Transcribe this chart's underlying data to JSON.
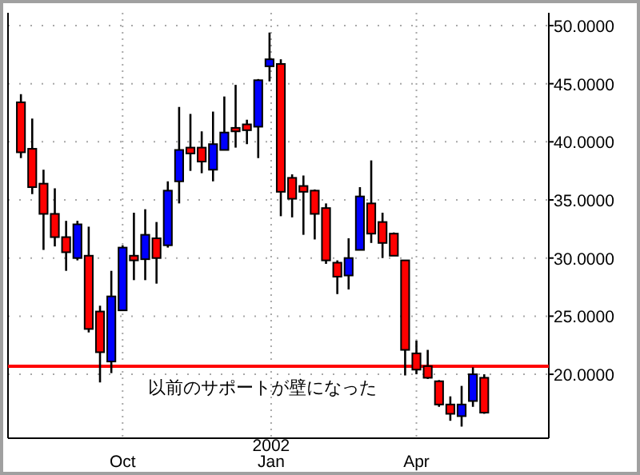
{
  "chart_data": {
    "type": "candlestick",
    "x": [
      "2001-07-30",
      "2001-08-06",
      "2001-08-13",
      "2001-08-20",
      "2001-08-27",
      "2001-09-03",
      "2001-09-10",
      "2001-09-17",
      "2001-09-24",
      "2001-10-01",
      "2001-10-08",
      "2001-10-15",
      "2001-10-22",
      "2001-10-29",
      "2001-11-05",
      "2001-11-12",
      "2001-11-19",
      "2001-11-26",
      "2001-12-03",
      "2001-12-10",
      "2001-12-17",
      "2001-12-24",
      "2001-12-31",
      "2002-01-07",
      "2002-01-14",
      "2002-01-21",
      "2002-01-28",
      "2002-02-04",
      "2002-02-11",
      "2002-02-18",
      "2002-02-25",
      "2002-03-04",
      "2002-03-11",
      "2002-03-18",
      "2002-03-25",
      "2002-04-01",
      "2002-04-08",
      "2002-04-15",
      "2002-04-22",
      "2002-04-29",
      "2002-05-06",
      "2002-05-13"
    ],
    "ohlc": [
      [
        43.4,
        44.1,
        38.6,
        39.1
      ],
      [
        39.4,
        42.0,
        35.5,
        36.1
      ],
      [
        36.4,
        37.6,
        30.7,
        33.8
      ],
      [
        33.8,
        36.0,
        31.0,
        31.8
      ],
      [
        31.8,
        33.2,
        28.9,
        30.5
      ],
      [
        30.0,
        33.2,
        29.8,
        32.9
      ],
      [
        30.2,
        32.7,
        23.6,
        23.9
      ],
      [
        25.4,
        25.9,
        19.3,
        21.9
      ],
      [
        21.1,
        28.9,
        20.1,
        26.7
      ],
      [
        25.5,
        31.1,
        25.5,
        30.9
      ],
      [
        30.2,
        33.9,
        28.1,
        29.8
      ],
      [
        29.9,
        34.2,
        28.1,
        32.0
      ],
      [
        31.7,
        33.1,
        27.8,
        30.0
      ],
      [
        31.1,
        36.6,
        30.9,
        35.8
      ],
      [
        36.6,
        43.0,
        34.7,
        39.3
      ],
      [
        39.5,
        42.4,
        37.5,
        39.0
      ],
      [
        39.5,
        40.9,
        37.3,
        38.3
      ],
      [
        37.6,
        42.6,
        36.6,
        39.8
      ],
      [
        39.3,
        43.9,
        39.3,
        40.8
      ],
      [
        41.2,
        44.9,
        39.5,
        40.9
      ],
      [
        41.5,
        41.9,
        39.8,
        41.0
      ],
      [
        41.3,
        45.4,
        38.6,
        45.3
      ],
      [
        46.5,
        49.4,
        45.2,
        47.1
      ],
      [
        46.7,
        47.1,
        33.6,
        35.7
      ],
      [
        36.9,
        37.2,
        33.5,
        35.1
      ],
      [
        36.2,
        37.1,
        32.0,
        35.7
      ],
      [
        35.8,
        35.9,
        31.6,
        33.8
      ],
      [
        34.3,
        34.7,
        29.5,
        29.8
      ],
      [
        29.6,
        29.8,
        26.9,
        28.4
      ],
      [
        28.5,
        31.7,
        27.3,
        30.0
      ],
      [
        30.7,
        36.1,
        30.7,
        35.3
      ],
      [
        34.7,
        38.4,
        31.3,
        32.1
      ],
      [
        33.1,
        33.9,
        30.0,
        31.3
      ],
      [
        32.1,
        32.2,
        30.2,
        30.2
      ],
      [
        29.8,
        29.8,
        19.9,
        22.1
      ],
      [
        21.8,
        22.9,
        20.0,
        20.4
      ],
      [
        20.7,
        22.1,
        19.6,
        19.7
      ],
      [
        19.4,
        19.5,
        17.2,
        17.4
      ],
      [
        17.4,
        18.1,
        16.0,
        16.6
      ],
      [
        16.4,
        19.0,
        15.5,
        17.4
      ],
      [
        17.7,
        20.6,
        17.2,
        20.0
      ],
      [
        19.7,
        20.0,
        16.6,
        16.7
      ]
    ],
    "colors": [
      "#ff0000",
      "#ff0000",
      "#ff0000",
      "#ff0000",
      "#ff0000",
      "#0000ff",
      "#ff0000",
      "#ff0000",
      "#0000ff",
      "#0000ff",
      "#ff0000",
      "#0000ff",
      "#ff0000",
      "#0000ff",
      "#0000ff",
      "#ff0000",
      "#ff0000",
      "#0000ff",
      "#0000ff",
      "#ff0000",
      "#ff0000",
      "#0000ff",
      "#0000ff",
      "#ff0000",
      "#ff0000",
      "#ff0000",
      "#ff0000",
      "#ff0000",
      "#ff0000",
      "#0000ff",
      "#0000ff",
      "#ff0000",
      "#ff0000",
      "#ff0000",
      "#ff0000",
      "#ff0000",
      "#ff0000",
      "#ff0000",
      "#ff0000",
      "#0000ff",
      "#0000ff",
      "#ff0000"
    ],
    "xlim": [
      "2001-07-22",
      "2002-06-22"
    ],
    "xticks": [
      {
        "value": "2001-10-01",
        "label": "Oct"
      },
      {
        "value": "2002-01-01",
        "label": "2002\nJan"
      },
      {
        "value": "2002-04-01",
        "label": "Apr"
      }
    ],
    "ylim": [
      14.5,
      51.1
    ],
    "yticks": [
      {
        "value": 20,
        "label": "20.0000"
      },
      {
        "value": 25,
        "label": "25.0000"
      },
      {
        "value": 30,
        "label": "30.0000"
      },
      {
        "value": 35,
        "label": "35.0000"
      },
      {
        "value": 40,
        "label": "40.0000"
      },
      {
        "value": 45,
        "label": "45.0000"
      },
      {
        "value": 50,
        "label": "50.0000"
      }
    ],
    "grid": true,
    "ref_lines": [
      {
        "axis": "y",
        "value": 20.7,
        "label": "以前のサポートが壁になった",
        "color": "#ff0000"
      }
    ]
  }
}
